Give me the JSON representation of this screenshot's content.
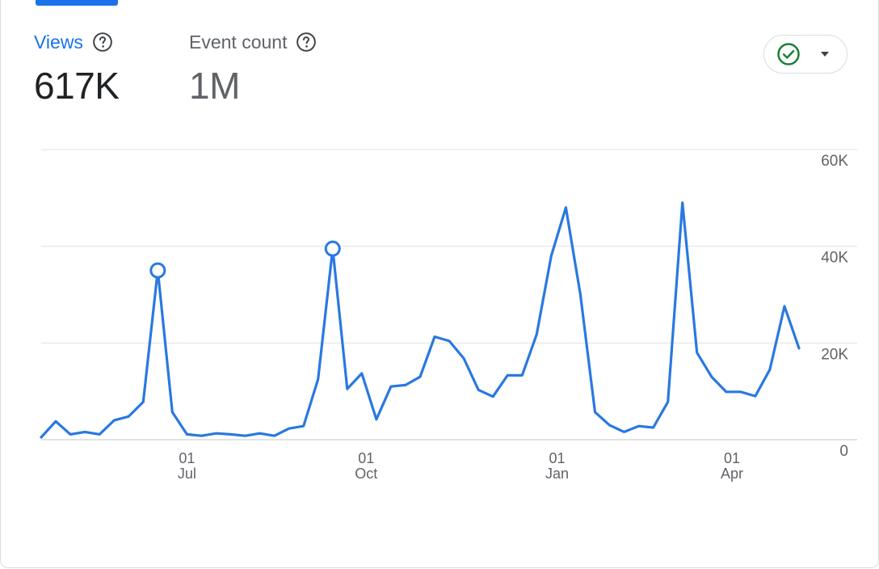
{
  "metrics": {
    "views": {
      "label": "Views",
      "value": "617K"
    },
    "event_count": {
      "label": "Event count",
      "value": "1M"
    }
  },
  "icons": {
    "help": "help-circle-icon",
    "compare": "check-circle-icon",
    "dropdown": "caret-down-icon"
  },
  "colors": {
    "accent": "#1a73e8",
    "series": "#2979e0",
    "check": "#188038",
    "grid": "#e0e0e0",
    "text_muted": "#5f6368"
  },
  "chart_data": {
    "type": "line",
    "title": "",
    "xlabel": "",
    "ylabel": "",
    "ylim": [
      0,
      60000
    ],
    "y_ticks": [
      {
        "value": 0,
        "label": "0"
      },
      {
        "value": 20000,
        "label": "20K"
      },
      {
        "value": 40000,
        "label": "40K"
      },
      {
        "value": 60000,
        "label": "60K"
      }
    ],
    "x_ticks": [
      {
        "index": 10,
        "day": "01",
        "month": "Jul"
      },
      {
        "index": 22.3,
        "day": "01",
        "month": "Oct"
      },
      {
        "index": 35.4,
        "day": "01",
        "month": "Jan"
      },
      {
        "index": 47.4,
        "day": "01",
        "month": "Apr"
      }
    ],
    "grid": true,
    "legend": "none",
    "series": [
      {
        "values": [
          500,
          3800,
          1100,
          1600,
          1100,
          4000,
          4800,
          7800,
          35000,
          5700,
          1100,
          800,
          1300,
          1100,
          800,
          1300,
          800,
          2300,
          2800,
          12500,
          39500,
          10500,
          13700,
          4200,
          11000,
          11300,
          13000,
          21300,
          20400,
          16800,
          10300,
          8900,
          13300,
          13300,
          21800,
          38000,
          48000,
          30000,
          5700,
          3000,
          1600,
          2800,
          2500,
          7800,
          49000,
          18000,
          13000,
          9900,
          9900,
          9000,
          14500,
          27600,
          18900
        ],
        "highlighted": [
          8,
          20
        ]
      }
    ]
  }
}
